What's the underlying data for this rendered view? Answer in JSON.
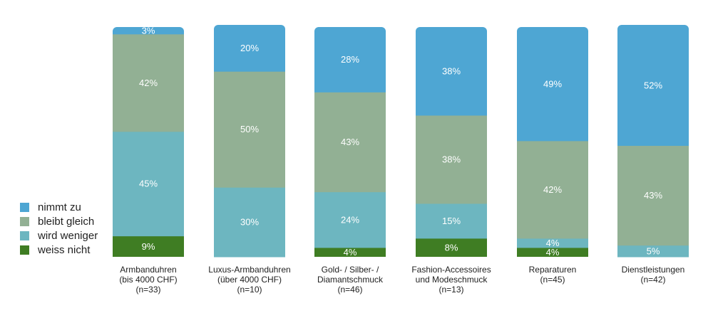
{
  "chart_data": {
    "type": "bar",
    "stacked": true,
    "categories": [
      [
        "Armbanduhren",
        "(bis 4000 CHF)",
        "(n=33)"
      ],
      [
        "Luxus-Armbanduhren",
        "(über 4000 CHF)",
        "(n=10)"
      ],
      [
        "Gold- / Silber- /",
        "Diamantschmuck",
        "(n=46)"
      ],
      [
        "Fashion-Accessoires",
        "und Modeschmuck",
        "(n=13)"
      ],
      [
        "Reparaturen",
        "(n=45)"
      ],
      [
        "Dienstleistungen",
        "(n=42)"
      ]
    ],
    "series": [
      {
        "name": "weiss nicht",
        "color": "#3f7d23",
        "values": [
          9,
          0,
          4,
          8,
          4,
          0
        ]
      },
      {
        "name": "wird weniger",
        "color": "#6db6c0",
        "values": [
          45,
          30,
          24,
          15,
          4,
          5
        ]
      },
      {
        "name": "bleibt gleich",
        "color": "#92b094",
        "values": [
          42,
          50,
          43,
          38,
          42,
          43
        ]
      },
      {
        "name": "nimmt zu",
        "color": "#4ea6d3",
        "values": [
          3,
          20,
          28,
          38,
          49,
          52
        ]
      }
    ],
    "ylim": [
      0,
      100
    ],
    "value_suffix": "%",
    "legend_position": "left"
  }
}
